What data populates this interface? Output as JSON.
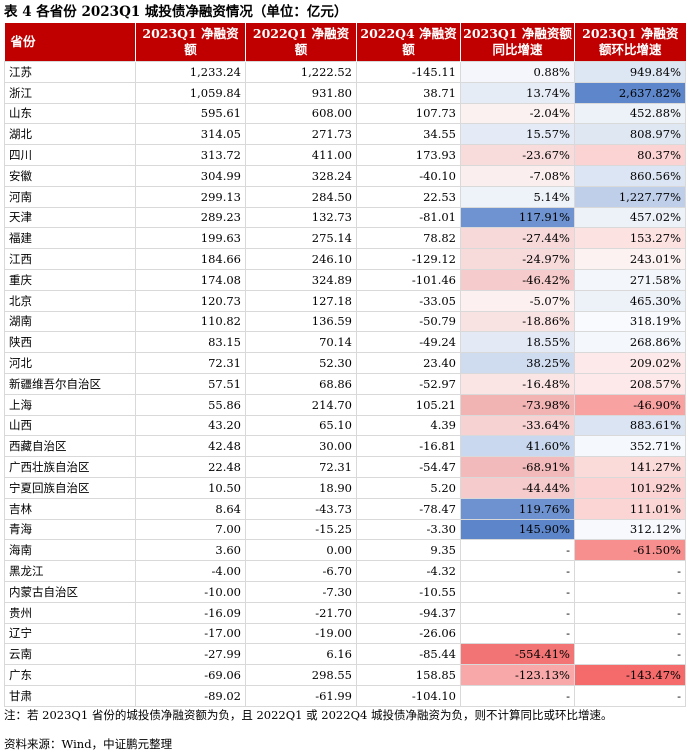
{
  "title": "表 4 各省份 2023Q1 城投债净融资情况（单位：亿元）",
  "headers": [
    "省份",
    "2023Q1 净融资额",
    "2022Q1 净融资额",
    "2022Q4 净融资额",
    "2023Q1 净融资额同比增速",
    "2023Q1 净融资额环比增速"
  ],
  "rows": [
    [
      "江苏",
      "1,233.24",
      "1,222.52",
      "-145.11",
      "0.88%",
      "949.84%"
    ],
    [
      "浙江",
      "1,059.84",
      "931.80",
      "38.71",
      "13.74%",
      "2,637.82%"
    ],
    [
      "山东",
      "595.61",
      "608.00",
      "107.73",
      "-2.04%",
      "452.88%"
    ],
    [
      "湖北",
      "314.05",
      "271.73",
      "34.55",
      "15.57%",
      "808.97%"
    ],
    [
      "四川",
      "313.72",
      "411.00",
      "173.93",
      "-23.67%",
      "80.37%"
    ],
    [
      "安徽",
      "304.99",
      "328.24",
      "-40.10",
      "-7.08%",
      "860.56%"
    ],
    [
      "河南",
      "299.13",
      "284.50",
      "22.53",
      "5.14%",
      "1,227.77%"
    ],
    [
      "天津",
      "289.23",
      "132.73",
      "-81.01",
      "117.91%",
      "457.02%"
    ],
    [
      "福建",
      "199.63",
      "275.14",
      "78.82",
      "-27.44%",
      "153.27%"
    ],
    [
      "江西",
      "184.66",
      "246.10",
      "-129.12",
      "-24.97%",
      "243.01%"
    ],
    [
      "重庆",
      "174.08",
      "324.89",
      "-101.46",
      "-46.42%",
      "271.58%"
    ],
    [
      "北京",
      "120.73",
      "127.18",
      "-33.05",
      "-5.07%",
      "465.30%"
    ],
    [
      "湖南",
      "110.82",
      "136.59",
      "-50.79",
      "-18.86%",
      "318.19%"
    ],
    [
      "陕西",
      "83.15",
      "70.14",
      "-49.24",
      "18.55%",
      "268.86%"
    ],
    [
      "河北",
      "72.31",
      "52.30",
      "23.40",
      "38.25%",
      "209.02%"
    ],
    [
      "新疆维吾尔自治区",
      "57.51",
      "68.86",
      "-52.97",
      "-16.48%",
      "208.57%"
    ],
    [
      "上海",
      "55.86",
      "214.70",
      "105.21",
      "-73.98%",
      "-46.90%"
    ],
    [
      "山西",
      "43.20",
      "65.10",
      "4.39",
      "-33.64%",
      "883.61%"
    ],
    [
      "西藏自治区",
      "42.48",
      "30.00",
      "-16.81",
      "41.60%",
      "352.71%"
    ],
    [
      "广西壮族自治区",
      "22.48",
      "72.31",
      "-54.47",
      "-68.91%",
      "141.27%"
    ],
    [
      "宁夏回族自治区",
      "10.50",
      "18.90",
      "5.20",
      "-44.44%",
      "101.92%"
    ],
    [
      "吉林",
      "8.64",
      "-43.73",
      "-78.47",
      "119.76%",
      "111.01%"
    ],
    [
      "青海",
      "7.00",
      "-15.25",
      "-3.30",
      "145.90%",
      "312.12%"
    ],
    [
      "海南",
      "3.60",
      "0.00",
      "9.35",
      "-",
      "-61.50%"
    ],
    [
      "黑龙江",
      "-4.00",
      "-6.70",
      "-4.32",
      "-",
      "-"
    ],
    [
      "内蒙古自治区",
      "-10.00",
      "-7.30",
      "-10.55",
      "-",
      "-"
    ],
    [
      "贵州",
      "-16.09",
      "-21.70",
      "-94.37",
      "-",
      "-"
    ],
    [
      "辽宁",
      "-17.00",
      "-19.00",
      "-26.06",
      "-",
      "-"
    ],
    [
      "云南",
      "-27.99",
      "6.16",
      "-85.44",
      "-554.41%",
      "-"
    ],
    [
      "广东",
      "-69.06",
      "298.55",
      "158.85",
      "-123.13%",
      "-143.47%"
    ],
    [
      "甘肃",
      "-89.02",
      "-61.99",
      "-104.10",
      "-",
      "-"
    ]
  ],
  "yoy_colors": [
    "#f4f6fb",
    "#e6ecf6",
    "#fcf1f1",
    "#e4ebf6",
    "#f8dcdc",
    "#fbeeee",
    "#eef2f9",
    "#6e93d0",
    "#f7d9d9",
    "#f7dada",
    "#f5cbcb",
    "#fcf0f0",
    "#f9e2e2",
    "#e3eaf6",
    "#cfdcf0",
    "#fae4e4",
    "#f2b3b3",
    "#f6d2d2",
    "#c9d8ee",
    "#f2baba",
    "#f5cbcb",
    "#6d92cf",
    "#5d86ca",
    "#ffffff",
    "#ffffff",
    "#ffffff",
    "#ffffff",
    "#ffffff",
    "#f27474",
    "#f8a8a8",
    "#ffffff"
  ],
  "mom_colors": [
    "#dde6f3",
    "#5e87cb",
    "#edf1f8",
    "#dfe7f3",
    "#fbd3d3",
    "#dce5f3",
    "#bfcfea",
    "#edf1f8",
    "#fde2e2",
    "#fcf2f2",
    "#f3f6fb",
    "#edf1f8",
    "#f8fafd",
    "#f4f7fb",
    "#fde9e9",
    "#fde9e9",
    "#f9a2a2",
    "#dae4f2",
    "#f5f8fc",
    "#fbdada",
    "#fbd3d3",
    "#fbd4d4",
    "#f7f9fd",
    "#f88f8f",
    "#ffffff",
    "#ffffff",
    "#ffffff",
    "#ffffff",
    "#ffffff",
    "#f56b6b",
    "#ffffff"
  ],
  "note": "注：若 2023Q1 省份的城投债净融资额为负，且 2022Q1 或 2022Q4 城投债净融资为负，则不计算同比或环比增速。",
  "source": "资料来源：Wind，中证鹏元整理"
}
